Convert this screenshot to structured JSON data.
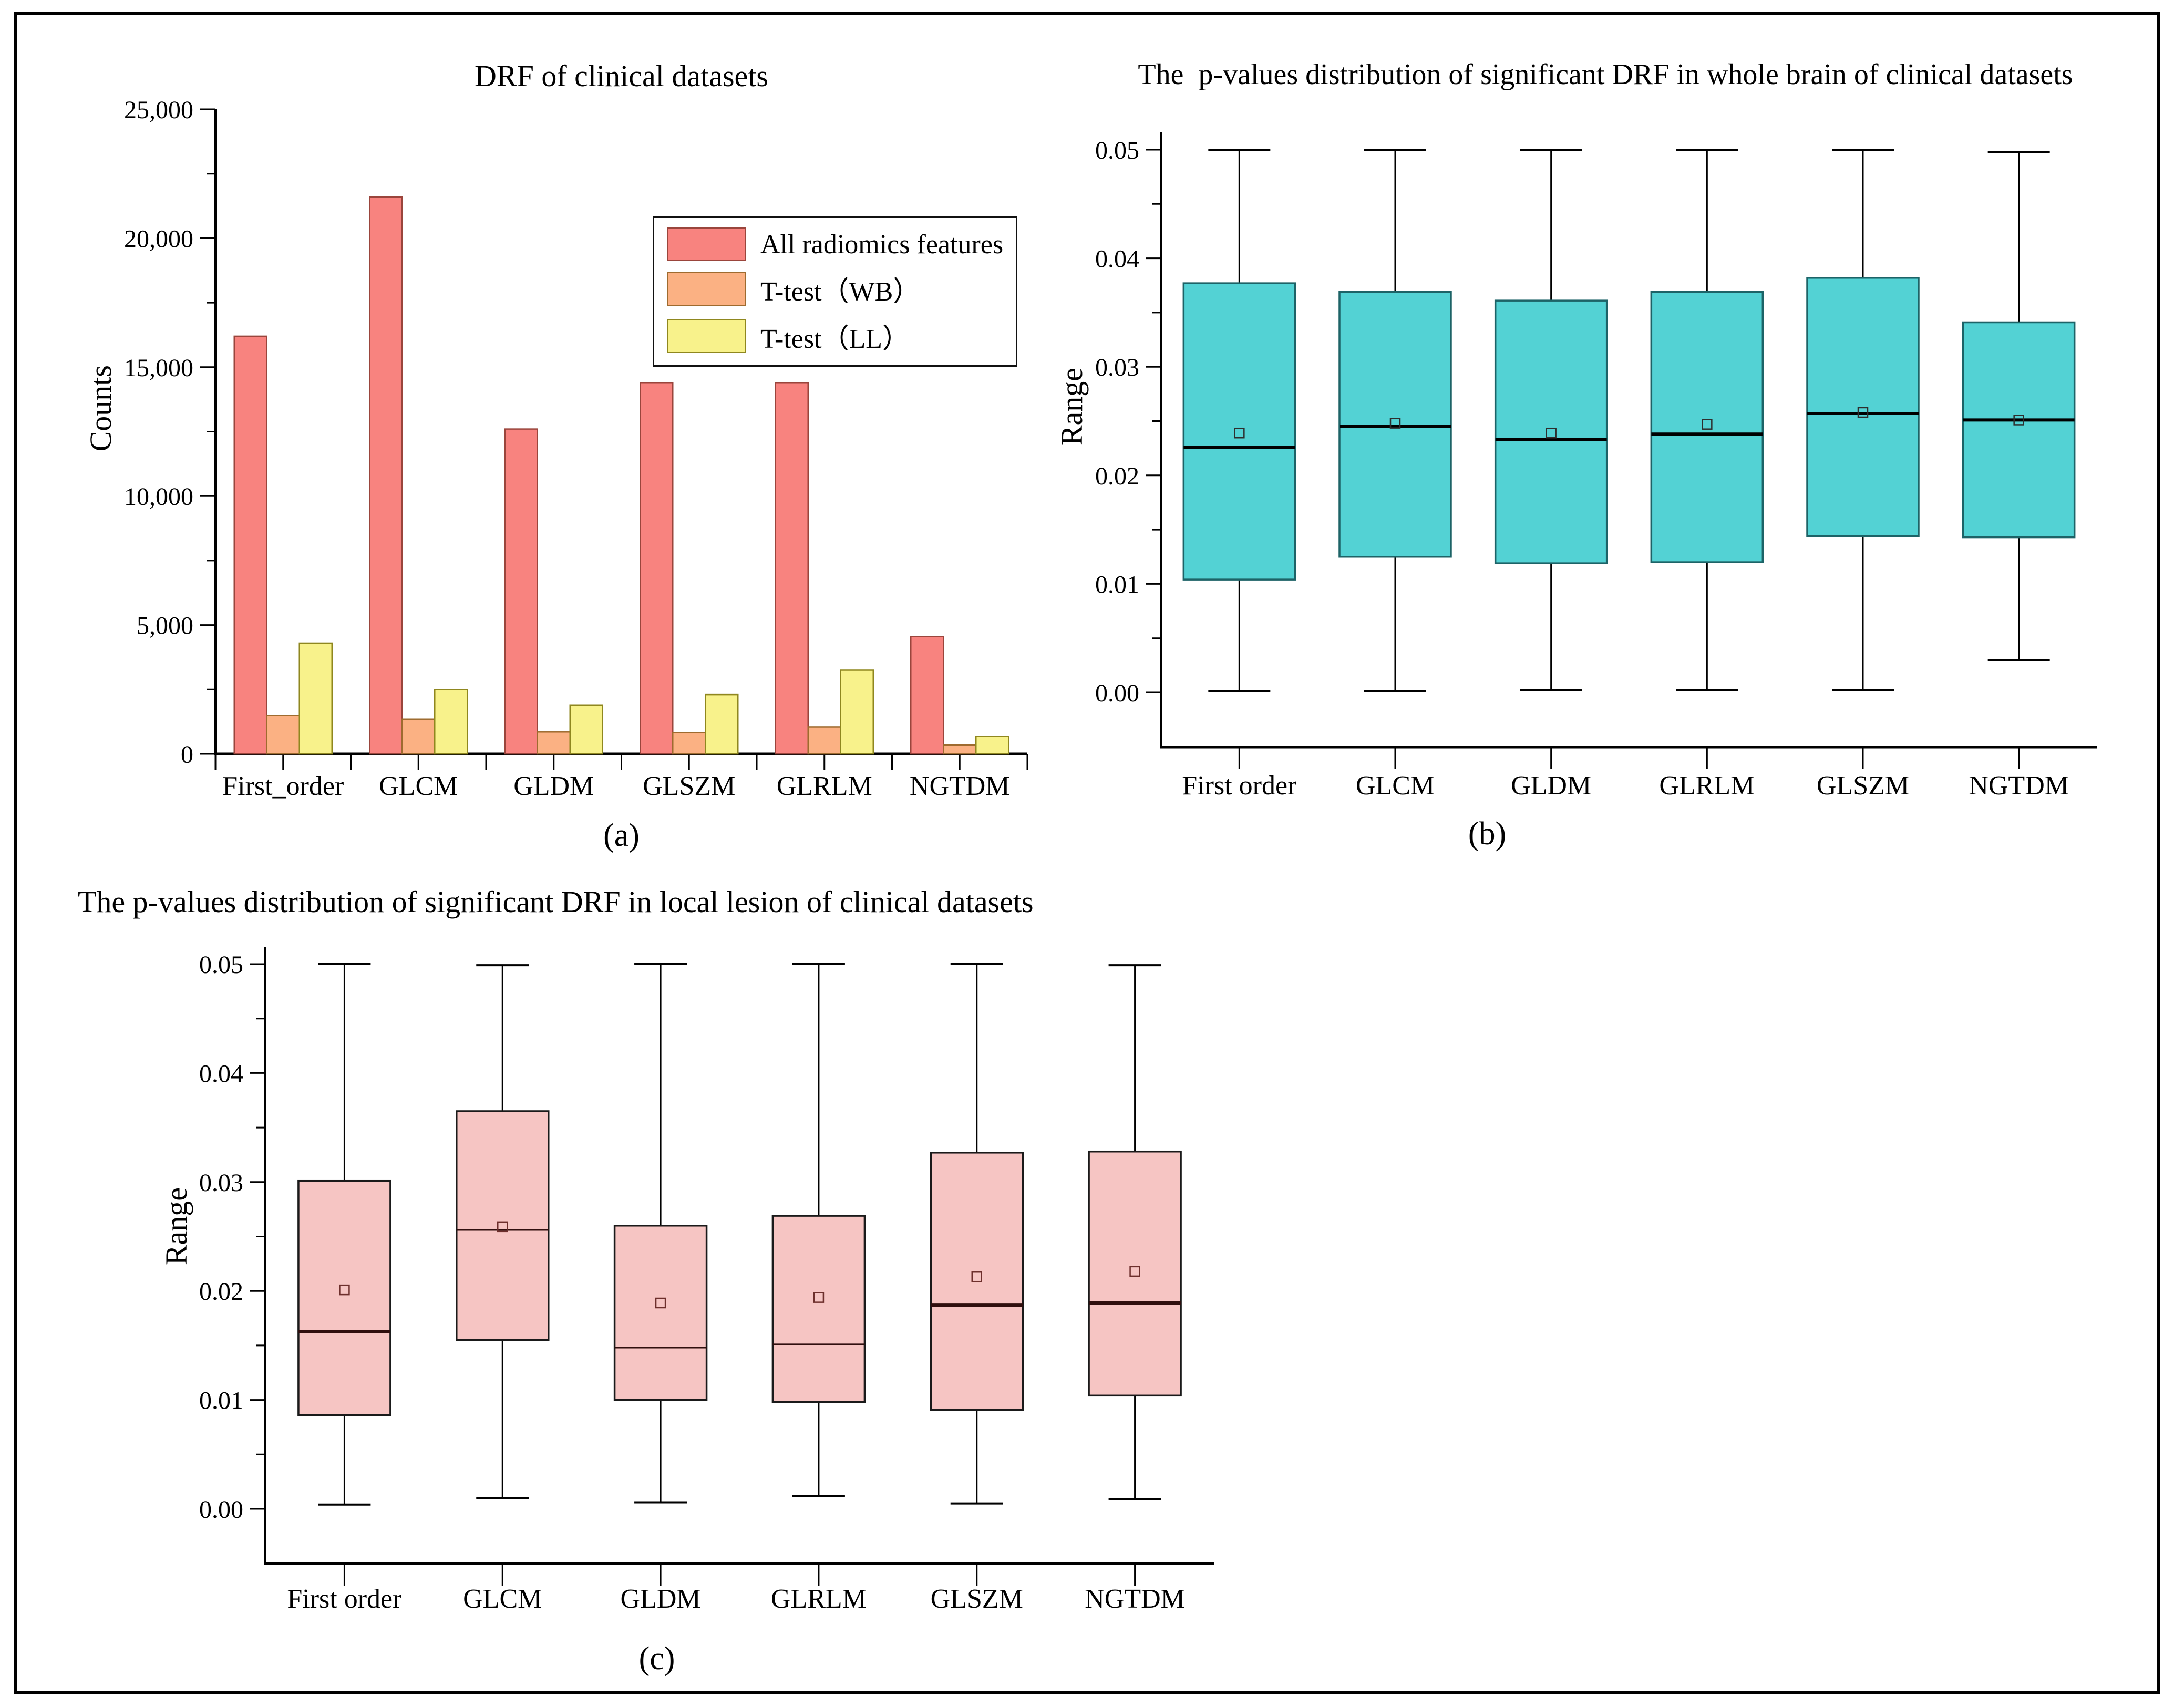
{
  "figure": {
    "background": "#ffffff",
    "border_color": "#000000"
  },
  "chart_data": [
    {
      "id": "a",
      "type": "bar",
      "title": "DRF of clinical datasets",
      "ylabel": "Counts",
      "sublabel": "(a)",
      "ylim": [
        0,
        25000
      ],
      "y_minor_step": 2500,
      "y_ticks": [
        {
          "v": 0,
          "label": "0"
        },
        {
          "v": 5000,
          "label": "5,000"
        },
        {
          "v": 10000,
          "label": "10,000"
        },
        {
          "v": 15000,
          "label": "15,000"
        },
        {
          "v": 20000,
          "label": "20,000"
        },
        {
          "v": 25000,
          "label": "25,000"
        }
      ],
      "categories": [
        "First_order",
        "GLCM",
        "GLDM",
        "GLSZM",
        "GLRLM",
        "NGTDM"
      ],
      "legend_position": "upper-right-inside",
      "series": [
        {
          "key": "all",
          "name": "All radiomics features",
          "fill": "#F8837F",
          "stroke": "#9A453C",
          "values": [
            16200,
            21600,
            12600,
            14400,
            14400,
            4550
          ]
        },
        {
          "key": "wb",
          "name": "T-test（WB）",
          "fill": "#FBB183",
          "stroke": "#9E6B2F",
          "values": [
            1500,
            1350,
            850,
            820,
            1050,
            350
          ]
        },
        {
          "key": "ll",
          "name": "T-test（LL）",
          "fill": "#F8F28B",
          "stroke": "#8F871F",
          "values": [
            4300,
            2500,
            1900,
            2300,
            3250,
            680
          ]
        }
      ]
    },
    {
      "id": "b",
      "type": "box",
      "title": "The  p-values distribution of significant DRF in whole brain of clinical datasets",
      "ylabel": "Range",
      "sublabel": "(b)",
      "ylim": [
        0,
        0.05
      ],
      "y_minor_step": 0.005,
      "y_ticks": [
        {
          "v": 0.0,
          "label": "0.00"
        },
        {
          "v": 0.01,
          "label": "0.01"
        },
        {
          "v": 0.02,
          "label": "0.02"
        },
        {
          "v": 0.03,
          "label": "0.03"
        },
        {
          "v": 0.04,
          "label": "0.04"
        },
        {
          "v": 0.05,
          "label": "0.05"
        }
      ],
      "categories": [
        "First order",
        "GLCM",
        "GLDM",
        "GLRLM",
        "GLSZM",
        "NGTDM"
      ],
      "box_fill": "#53D2D4",
      "box_stroke": "#1D6367",
      "median_color": "#000000",
      "mean_marker_color": "#2E2E2E",
      "boxes": [
        {
          "category": "First order",
          "whisker_low": 0.0001,
          "q1": 0.0104,
          "median": 0.0226,
          "q3": 0.0377,
          "whisker_high": 0.05,
          "mean": 0.0239,
          "thick_median": true
        },
        {
          "category": "GLCM",
          "whisker_low": 0.0001,
          "q1": 0.0125,
          "median": 0.0245,
          "q3": 0.0369,
          "whisker_high": 0.05,
          "mean": 0.0248,
          "thick_median": true
        },
        {
          "category": "GLDM",
          "whisker_low": 0.0002,
          "q1": 0.0119,
          "median": 0.0233,
          "q3": 0.0361,
          "whisker_high": 0.05,
          "mean": 0.0239,
          "thick_median": true
        },
        {
          "category": "GLRLM",
          "whisker_low": 0.0002,
          "q1": 0.012,
          "median": 0.0238,
          "q3": 0.0369,
          "whisker_high": 0.05,
          "mean": 0.0247,
          "thick_median": true
        },
        {
          "category": "GLSZM",
          "whisker_low": 0.0002,
          "q1": 0.0144,
          "median": 0.0257,
          "q3": 0.0382,
          "whisker_high": 0.05,
          "mean": 0.0258,
          "thick_median": true
        },
        {
          "category": "NGTDM",
          "whisker_low": 0.003,
          "q1": 0.0143,
          "median": 0.0251,
          "q3": 0.0341,
          "whisker_high": 0.0498,
          "mean": 0.0251,
          "thick_median": true
        }
      ]
    },
    {
      "id": "c",
      "type": "box",
      "title": "The p-values distribution of significant DRF in local lesion of clinical datasets",
      "ylabel": "Range",
      "sublabel": "(c)",
      "ylim": [
        0,
        0.05
      ],
      "y_minor_step": 0.005,
      "y_ticks": [
        {
          "v": 0.0,
          "label": "0.00"
        },
        {
          "v": 0.01,
          "label": "0.01"
        },
        {
          "v": 0.02,
          "label": "0.02"
        },
        {
          "v": 0.03,
          "label": "0.03"
        },
        {
          "v": 0.04,
          "label": "0.04"
        },
        {
          "v": 0.05,
          "label": "0.05"
        }
      ],
      "categories": [
        "First order",
        "GLCM",
        "GLDM",
        "GLRLM",
        "GLSZM",
        "NGTDM"
      ],
      "box_fill": "#F6C5C3",
      "box_stroke": "#1A1A1A",
      "median_color": "#300F0E",
      "mean_marker_color": "#6D2F2C",
      "boxes": [
        {
          "category": "First order",
          "whisker_low": 0.0004,
          "q1": 0.0086,
          "median": 0.0163,
          "q3": 0.0301,
          "whisker_high": 0.05,
          "mean": 0.0201,
          "thick_median": true
        },
        {
          "category": "GLCM",
          "whisker_low": 0.001,
          "q1": 0.0155,
          "median": 0.0256,
          "q3": 0.0365,
          "whisker_high": 0.0499,
          "mean": 0.0259,
          "thick_median": false
        },
        {
          "category": "GLDM",
          "whisker_low": 0.0006,
          "q1": 0.01,
          "median": 0.0148,
          "q3": 0.026,
          "whisker_high": 0.05,
          "mean": 0.0189,
          "thick_median": false
        },
        {
          "category": "GLRLM",
          "whisker_low": 0.0012,
          "q1": 0.0098,
          "median": 0.0151,
          "q3": 0.0269,
          "whisker_high": 0.05,
          "mean": 0.0194,
          "thick_median": false
        },
        {
          "category": "GLSZM",
          "whisker_low": 0.0005,
          "q1": 0.0091,
          "median": 0.0187,
          "q3": 0.0327,
          "whisker_high": 0.05,
          "mean": 0.0213,
          "thick_median": true
        },
        {
          "category": "NGTDM",
          "whisker_low": 0.0009,
          "q1": 0.0104,
          "median": 0.0189,
          "q3": 0.0328,
          "whisker_high": 0.0499,
          "mean": 0.0218,
          "thick_median": true
        }
      ]
    }
  ]
}
